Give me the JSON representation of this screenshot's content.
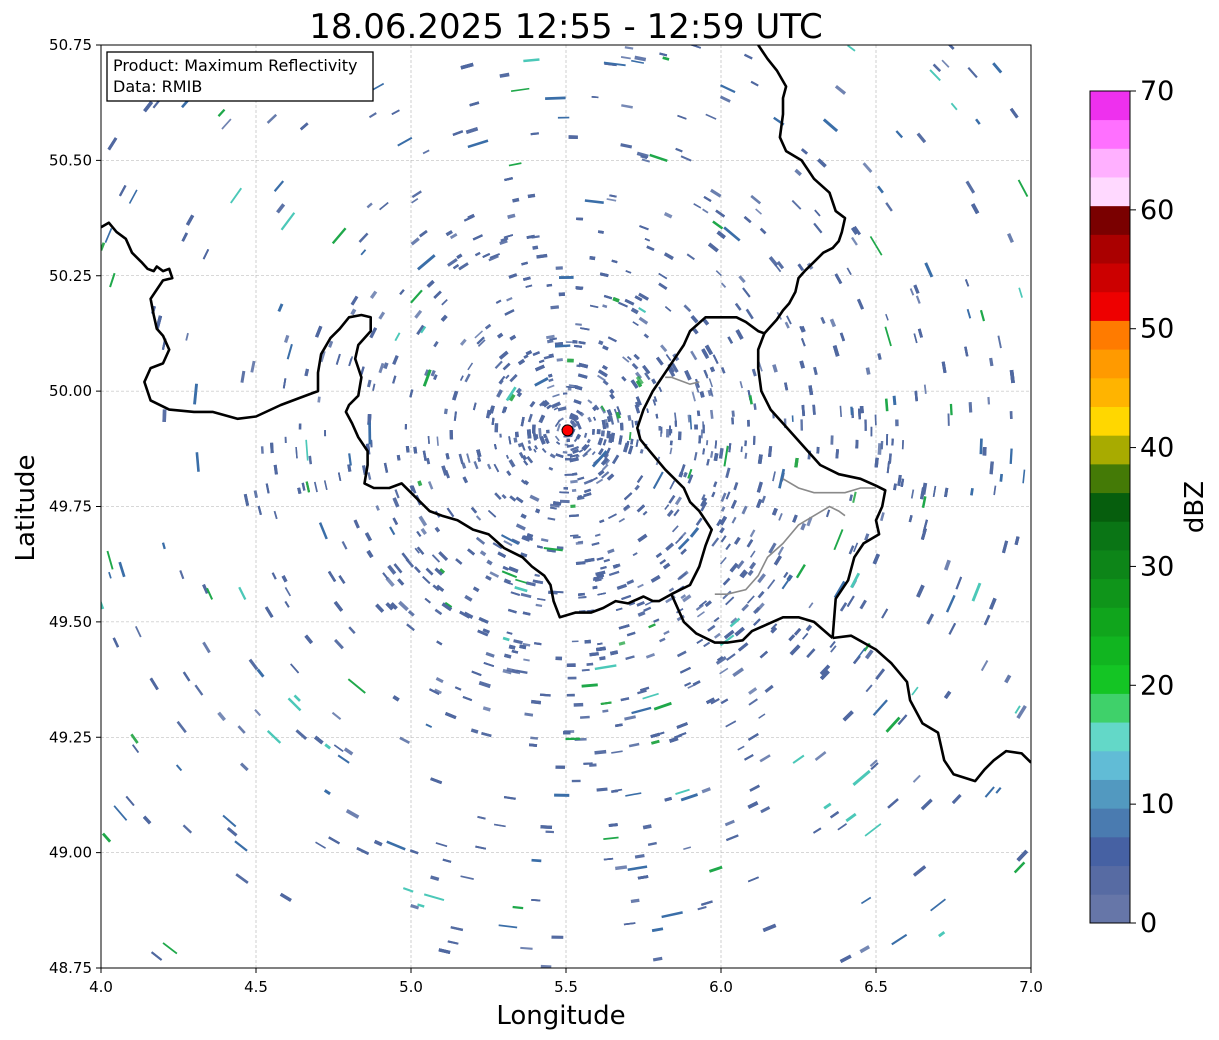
{
  "title": "18.06.2025 12:55 - 12:59 UTC",
  "xlabel": "Longitude",
  "ylabel": "Latitude",
  "info_box": {
    "product": "Product: Maximum Reflectivity",
    "data": "Data: RMIB"
  },
  "map": {
    "xlim": [
      4.0,
      7.0
    ],
    "ylim": [
      48.75,
      50.75
    ],
    "xticks": [
      4.0,
      4.5,
      5.0,
      5.5,
      6.0,
      6.5,
      7.0
    ],
    "xtick_labels": [
      "4.0",
      "4.5",
      "5.0",
      "5.5",
      "6.0",
      "6.5",
      "7.0"
    ],
    "yticks": [
      48.75,
      49.0,
      49.25,
      49.5,
      49.75,
      50.0,
      50.25,
      50.5,
      50.75
    ],
    "ytick_labels": [
      "48.75",
      "49.00",
      "49.25",
      "49.50",
      "49.75",
      "50.00",
      "50.25",
      "50.50",
      "50.75"
    ],
    "grid": true,
    "radar_site": {
      "lon": 5.505,
      "lat": 49.915,
      "color": "#ff0000"
    },
    "echo_color": "#5068a0",
    "strong_echo_color": "#2aa84a"
  },
  "colorbar": {
    "label": "dBZ",
    "range": [
      0,
      70
    ],
    "ticks": [
      0,
      10,
      20,
      30,
      40,
      50,
      60,
      70
    ],
    "tick_labels": [
      "0",
      "10",
      "20",
      "30",
      "40",
      "50",
      "60",
      "70"
    ],
    "colors": [
      "#6676a8",
      "#576ba3",
      "#4661a3",
      "#4a7bb0",
      "#5299c0",
      "#61bcd6",
      "#63d8c8",
      "#3fd16a",
      "#14c524",
      "#11b520",
      "#10a51c",
      "#0f951a",
      "#0d8518",
      "#0a7515",
      "#065e0d",
      "#447a06",
      "#a8ab00",
      "#ffd700",
      "#ffb400",
      "#ff9a00",
      "#ff7b00",
      "#ee0000",
      "#cc0000",
      "#aa0000",
      "#7a0000",
      "#ffd9ff",
      "#ffb0ff",
      "#ff70ff",
      "#ee30ee"
    ]
  },
  "borders": [
    {
      "name": "border-belgium-france",
      "points": [
        [
          4.0,
          50.355
        ],
        [
          4.025,
          50.365
        ],
        [
          4.05,
          50.345
        ],
        [
          4.08,
          50.33
        ],
        [
          4.1,
          50.3
        ],
        [
          4.13,
          50.28
        ],
        [
          4.15,
          50.265
        ],
        [
          4.17,
          50.26
        ],
        [
          4.18,
          50.27
        ],
        [
          4.2,
          50.26
        ],
        [
          4.22,
          50.265
        ],
        [
          4.23,
          50.245
        ],
        [
          4.2,
          50.24
        ],
        [
          4.16,
          50.2
        ],
        [
          4.17,
          50.165
        ],
        [
          4.18,
          50.135
        ],
        [
          4.2,
          50.12
        ],
        [
          4.22,
          50.09
        ],
        [
          4.2,
          50.06
        ],
        [
          4.16,
          50.05
        ],
        [
          4.14,
          50.02
        ],
        [
          4.16,
          49.98
        ],
        [
          4.22,
          49.96
        ],
        [
          4.3,
          49.955
        ],
        [
          4.36,
          49.955
        ],
        [
          4.44,
          49.94
        ],
        [
          4.5,
          49.945
        ],
        [
          4.58,
          49.97
        ],
        [
          4.64,
          49.985
        ],
        [
          4.68,
          49.995
        ],
        [
          4.7,
          50.0
        ],
        [
          4.7,
          50.04
        ],
        [
          4.71,
          50.08
        ],
        [
          4.74,
          50.115
        ],
        [
          4.77,
          50.135
        ],
        [
          4.8,
          50.16
        ],
        [
          4.84,
          50.165
        ],
        [
          4.87,
          50.16
        ],
        [
          4.87,
          50.13
        ],
        [
          4.83,
          50.1
        ],
        [
          4.82,
          50.07
        ],
        [
          4.84,
          50.03
        ],
        [
          4.83,
          49.99
        ],
        [
          4.8,
          49.97
        ],
        [
          4.79,
          49.955
        ],
        [
          4.81,
          49.93
        ],
        [
          4.83,
          49.9
        ],
        [
          4.86,
          49.87
        ],
        [
          4.86,
          49.84
        ],
        [
          4.85,
          49.8
        ],
        [
          4.88,
          49.79
        ],
        [
          4.93,
          49.79
        ],
        [
          4.97,
          49.8
        ],
        [
          5.0,
          49.78
        ],
        [
          5.03,
          49.76
        ],
        [
          5.06,
          49.74
        ],
        [
          5.1,
          49.73
        ],
        [
          5.15,
          49.72
        ],
        [
          5.2,
          49.7
        ],
        [
          5.25,
          49.69
        ],
        [
          5.3,
          49.66
        ],
        [
          5.33,
          49.65
        ],
        [
          5.36,
          49.64
        ],
        [
          5.39,
          49.62
        ],
        [
          5.43,
          49.6
        ],
        [
          5.45,
          49.58
        ],
        [
          5.46,
          49.545
        ],
        [
          5.48,
          49.51
        ],
        [
          5.53,
          49.52
        ],
        [
          5.58,
          49.52
        ],
        [
          5.62,
          49.53
        ],
        [
          5.66,
          49.545
        ],
        [
          5.7,
          49.54
        ],
        [
          5.75,
          49.555
        ],
        [
          5.78,
          49.545
        ],
        [
          5.8,
          49.545
        ],
        [
          5.84,
          49.56
        ],
        [
          5.87,
          49.57
        ],
        [
          5.9,
          49.58
        ],
        [
          5.93,
          49.62
        ],
        [
          5.95,
          49.665
        ],
        [
          5.97,
          49.7
        ],
        [
          5.93,
          49.74
        ],
        [
          5.9,
          49.76
        ],
        [
          5.88,
          49.79
        ],
        [
          5.82,
          49.83
        ],
        [
          5.77,
          49.87
        ],
        [
          5.74,
          49.895
        ],
        [
          5.73,
          49.92
        ],
        [
          5.75,
          49.96
        ],
        [
          5.78,
          50.0
        ],
        [
          5.82,
          50.04
        ],
        [
          5.85,
          50.07
        ],
        [
          5.88,
          50.1
        ],
        [
          5.9,
          50.13
        ],
        [
          5.95,
          50.16
        ],
        [
          6.0,
          50.16
        ],
        [
          6.05,
          50.16
        ],
        [
          6.08,
          50.15
        ],
        [
          6.12,
          50.13
        ],
        [
          6.14,
          50.125
        ],
        [
          6.16,
          50.14
        ],
        [
          6.18,
          50.155
        ],
        [
          6.2,
          50.175
        ],
        [
          6.22,
          50.19
        ],
        [
          6.24,
          50.215
        ],
        [
          6.25,
          50.245
        ],
        [
          6.27,
          50.26
        ],
        [
          6.3,
          50.28
        ],
        [
          6.33,
          50.3
        ],
        [
          6.36,
          50.31
        ],
        [
          6.38,
          50.325
        ],
        [
          6.39,
          50.345
        ],
        [
          6.4,
          50.375
        ],
        [
          6.37,
          50.39
        ],
        [
          6.35,
          50.43
        ],
        [
          6.3,
          50.46
        ],
        [
          6.26,
          50.5
        ],
        [
          6.21,
          50.52
        ],
        [
          6.19,
          50.55
        ],
        [
          6.2,
          50.6
        ],
        [
          6.2,
          50.635
        ],
        [
          6.21,
          50.66
        ],
        [
          6.18,
          50.695
        ],
        [
          6.15,
          50.72
        ],
        [
          6.12,
          50.75
        ]
      ]
    },
    {
      "name": "border-luxembourg-germany",
      "points": [
        [
          6.14,
          50.125
        ],
        [
          6.12,
          50.09
        ],
        [
          6.12,
          50.05
        ],
        [
          6.13,
          50.0
        ],
        [
          6.16,
          49.96
        ],
        [
          6.2,
          49.93
        ],
        [
          6.24,
          49.9
        ],
        [
          6.28,
          49.87
        ],
        [
          6.32,
          49.84
        ],
        [
          6.38,
          49.82
        ],
        [
          6.45,
          49.81
        ],
        [
          6.5,
          49.795
        ],
        [
          6.53,
          49.785
        ],
        [
          6.52,
          49.75
        ],
        [
          6.5,
          49.72
        ],
        [
          6.51,
          49.69
        ],
        [
          6.46,
          49.67
        ],
        [
          6.43,
          49.64
        ],
        [
          6.41,
          49.59
        ],
        [
          6.37,
          49.55
        ],
        [
          6.36,
          49.465
        ]
      ]
    },
    {
      "name": "border-luxembourg-france",
      "points": [
        [
          5.84,
          49.56
        ],
        [
          5.88,
          49.5
        ],
        [
          5.92,
          49.475
        ],
        [
          5.98,
          49.455
        ],
        [
          6.02,
          49.455
        ],
        [
          6.07,
          49.46
        ],
        [
          6.1,
          49.48
        ],
        [
          6.15,
          49.495
        ],
        [
          6.2,
          49.51
        ],
        [
          6.25,
          49.51
        ],
        [
          6.3,
          49.5
        ],
        [
          6.36,
          49.465
        ]
      ]
    },
    {
      "name": "border-germany-france",
      "points": [
        [
          6.36,
          49.465
        ],
        [
          6.42,
          49.47
        ],
        [
          6.5,
          49.44
        ],
        [
          6.55,
          49.41
        ],
        [
          6.6,
          49.37
        ],
        [
          6.61,
          49.33
        ],
        [
          6.65,
          49.28
        ],
        [
          6.7,
          49.26
        ],
        [
          6.72,
          49.2
        ],
        [
          6.75,
          49.17
        ],
        [
          6.82,
          49.155
        ],
        [
          6.85,
          49.18
        ],
        [
          6.88,
          49.2
        ],
        [
          6.92,
          49.22
        ],
        [
          6.97,
          49.215
        ],
        [
          7.0,
          49.195
        ]
      ]
    }
  ],
  "rivers": [
    {
      "name": "river-meuse-1",
      "points": [
        [
          5.82,
          50.03
        ],
        [
          5.84,
          50.03
        ],
        [
          5.88,
          50.02
        ],
        [
          5.9,
          50.015
        ],
        [
          5.93,
          50.02
        ]
      ]
    },
    {
      "name": "river-moselle-1",
      "points": [
        [
          6.4,
          49.73
        ],
        [
          6.38,
          49.74
        ],
        [
          6.35,
          49.75
        ],
        [
          6.3,
          49.73
        ],
        [
          6.25,
          49.71
        ],
        [
          6.2,
          49.67
        ],
        [
          6.15,
          49.64
        ],
        [
          6.12,
          49.6
        ],
        [
          6.08,
          49.57
        ],
        [
          6.02,
          49.56
        ],
        [
          5.98,
          49.56
        ]
      ]
    },
    {
      "name": "river-sure-1",
      "points": [
        [
          6.5,
          49.79
        ],
        [
          6.45,
          49.79
        ],
        [
          6.4,
          49.78
        ],
        [
          6.35,
          49.78
        ],
        [
          6.3,
          49.78
        ],
        [
          6.25,
          49.79
        ],
        [
          6.2,
          49.81
        ]
      ]
    }
  ],
  "echo_field": {
    "center": [
      5.505,
      49.915
    ],
    "max_range_deg": 2.35,
    "seed": 1806
  }
}
